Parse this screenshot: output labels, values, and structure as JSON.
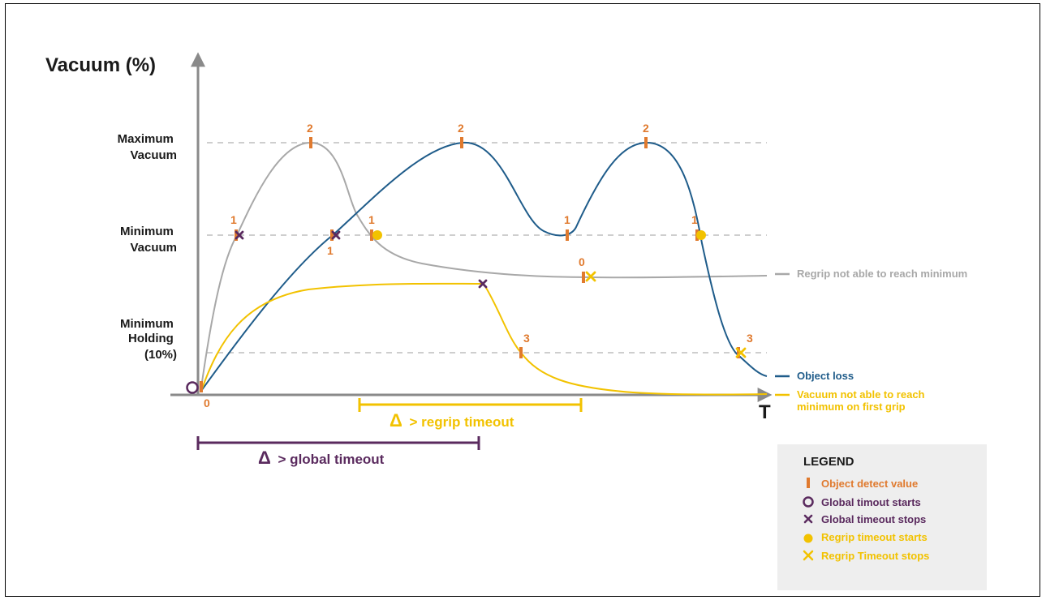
{
  "colors": {
    "axis": "#8a8a8a",
    "dashed": "#bdbdbd",
    "gray_curve": "#a8a8a8",
    "blue_curve": "#1f5c8a",
    "yellow_curve": "#f2c200",
    "orange": "#e07a2e",
    "purple": "#5a2a5e",
    "legend_bg": "#eeeeee",
    "text_dark": "#1a1a1a"
  },
  "axes": {
    "y_title": "Vacuum (%)",
    "x_title": "T"
  },
  "levels": {
    "maximum": "Maximum\nVacuum",
    "minimum": "Minimum\nVacuum",
    "holding": "Minimum\nHolding\n(10%)"
  },
  "curves": {
    "gray_label": "Regrip not able to reach minimum",
    "blue_label": "Object loss",
    "yellow_label": "Vacuum not able to reach\nminimum on first grip"
  },
  "markers": {
    "gray_peak": "2",
    "gray_min_rise": "1",
    "gray_min_fall": "1",
    "gray_end": "0",
    "blue_min_rise": "1",
    "blue_peak1": "2",
    "blue_min_valley": "1",
    "blue_peak2": "2",
    "blue_min_fall": "1",
    "blue_holding": "3",
    "yellow_holding": "3",
    "origin": "0"
  },
  "timeouts": {
    "regrip": "> regrip timeout",
    "global": "> global timeout",
    "delta_symbol": "Δ"
  },
  "legend": {
    "title": "LEGEND",
    "items": [
      {
        "label": "Object detect value",
        "icon": "orange-tick-icon",
        "color": "#e07a2e"
      },
      {
        "label": "Global timout starts",
        "icon": "purple-circle-icon",
        "color": "#5a2a5e"
      },
      {
        "label": "Global timeout stops",
        "icon": "purple-x-icon",
        "color": "#5a2a5e"
      },
      {
        "label": "Regrip timeout starts",
        "icon": "yellow-dot-icon",
        "color": "#f2c200"
      },
      {
        "label": "Regrip Timeout stops",
        "icon": "yellow-x-icon",
        "color": "#f2c200"
      }
    ]
  }
}
